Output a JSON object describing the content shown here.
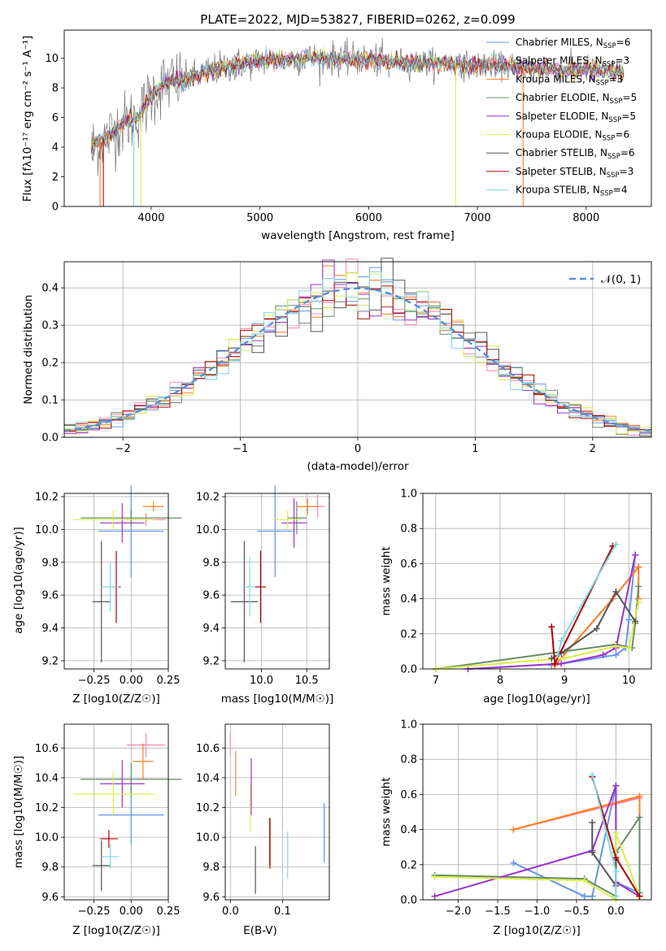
{
  "chart_data": [
    {
      "type": "line",
      "title": "PLATE=2022, MJD=53827, FIBERID=0262, z=0.099",
      "xlabel": "wavelength [Angstrom, rest frame]",
      "ylabel": "Flux [fλ10⁻¹⁷ erg cm⁻² s⁻¹ A⁻¹]",
      "xlim": [
        3200,
        8600
      ],
      "ylim": [
        0,
        11.9
      ],
      "xticks": [
        4000,
        5000,
        6000,
        7000,
        8000
      ],
      "yticks": [
        0,
        2,
        4,
        6,
        8,
        10
      ],
      "legend_position": "upper-right",
      "continuum": {
        "wavelength": [
          3450,
          3500,
          3600,
          3700,
          3800,
          3900,
          4000,
          4100,
          4200,
          4300,
          4400,
          4600,
          4800,
          5000,
          5200,
          5400,
          5600,
          5800,
          6000,
          6200,
          6400,
          6600,
          6800,
          7000,
          7200,
          7400,
          7600,
          7800,
          8000,
          8200,
          8350
        ],
        "flux": [
          3.9,
          4.3,
          4.7,
          5.4,
          5.8,
          6.2,
          7.5,
          8.2,
          8.4,
          8.5,
          8.8,
          9.3,
          9.6,
          9.8,
          9.9,
          10.0,
          10.0,
          9.9,
          9.9,
          9.8,
          9.7,
          9.7,
          9.6,
          9.5,
          9.5,
          9.4,
          9.3,
          9.2,
          9.3,
          9.1,
          9.0
        ]
      },
      "series": [
        {
          "name": "Chabrier MILES, N_SSP=6",
          "color": "#6495ed"
        },
        {
          "name": "Salpeter MILES, N_SSP=3",
          "color": "#ff82ab"
        },
        {
          "name": "Kroupa MILES, N_SSP=3",
          "color": "#ff7f24"
        },
        {
          "name": "Chabrier ELODIE, N_SSP=5",
          "color": "#698b69"
        },
        {
          "name": "Salpeter ELODIE, N_SSP=5",
          "color": "#9a32cd"
        },
        {
          "name": "Kroupa ELODIE, N_SSP=6",
          "color": "#dbee4a"
        },
        {
          "name": "Chabrier STELIB, N_SSP=6",
          "color": "#555555"
        },
        {
          "name": "Salpeter STELIB, N_SSP=3",
          "color": "#b00000"
        },
        {
          "name": "Kroupa STELIB, N_SSP=4",
          "color": "#7fd7e0"
        }
      ]
    },
    {
      "type": "histogram",
      "xlabel": "(data-model)/error",
      "ylabel": "Normed distribution",
      "xlim": [
        -2.5,
        2.5
      ],
      "ylim": [
        0,
        0.47
      ],
      "xticks": [
        -2,
        -1,
        0,
        1,
        2
      ],
      "yticks": [
        0.0,
        0.1,
        0.2,
        0.3,
        0.4
      ],
      "legend": "𝒩(0, 1)",
      "legend_position": "upper-right",
      "bin_width": 0.1
    },
    {
      "type": "error_bar",
      "xlabel": "Z [log10(Z/Z☉)]",
      "ylabel": "age  [log10(age/yr)]",
      "xlim": [
        -0.45,
        0.25
      ],
      "ylim": [
        9.15,
        10.22
      ],
      "xticks": [
        -0.25,
        0.0,
        0.25
      ],
      "yticks": [
        9.2,
        9.4,
        9.6,
        9.8,
        10.0,
        10.2
      ],
      "points": [
        {
          "x": 0.0,
          "xerr": 0.22,
          "y": 9.99,
          "yerr": 0.28
        },
        {
          "x": 0.1,
          "xerr": 0.13,
          "y": 10.06,
          "yerr": 0.04
        },
        {
          "x": 0.15,
          "xerr": 0.07,
          "y": 10.14,
          "yerr": 0.03
        },
        {
          "x": 0.0,
          "xerr": 0.34,
          "y": 10.07,
          "yerr": 0.05
        },
        {
          "x": -0.06,
          "xerr": 0.15,
          "y": 10.04,
          "yerr": 0.12
        },
        {
          "x": -0.12,
          "xerr": 0.27,
          "y": 10.06,
          "yerr": 0.06
        },
        {
          "x": -0.2,
          "xerr": 0.06,
          "y": 9.56,
          "yerr": 0.37
        },
        {
          "x": -0.1,
          "xerr": 0.03,
          "y": 9.65,
          "yerr": 0.22
        },
        {
          "x": -0.14,
          "xerr": 0.06,
          "y": 9.65,
          "yerr": 0.15
        }
      ]
    },
    {
      "type": "error_bar",
      "xlabel": "mass [log10(M/M☉)]",
      "xlim": [
        9.6,
        10.75
      ],
      "ylim": [
        9.15,
        10.22
      ],
      "xticks": [
        10.0,
        10.5
      ],
      "yticks": [
        9.2,
        9.4,
        9.6,
        9.8,
        10.0,
        10.2
      ],
      "points": [
        {
          "x": 10.15,
          "xerr": 0.2,
          "y": 9.99,
          "yerr": 0.28
        },
        {
          "x": 10.62,
          "xerr": 0.08,
          "y": 10.14,
          "yerr": 0.07
        },
        {
          "x": 10.51,
          "xerr": 0.12,
          "y": 10.14,
          "yerr": 0.05
        },
        {
          "x": 10.39,
          "xerr": 0.11,
          "y": 10.07,
          "yerr": 0.1
        },
        {
          "x": 10.36,
          "xerr": 0.14,
          "y": 10.04,
          "yerr": 0.15
        },
        {
          "x": 10.29,
          "xerr": 0.15,
          "y": 10.06,
          "yerr": 0.06
        },
        {
          "x": 9.81,
          "xerr": 0.15,
          "y": 9.56,
          "yerr": 0.37
        },
        {
          "x": 9.99,
          "xerr": 0.06,
          "y": 9.65,
          "yerr": 0.22
        },
        {
          "x": 9.87,
          "xerr": 0.06,
          "y": 9.65,
          "yerr": 0.18
        }
      ]
    },
    {
      "type": "line",
      "xlabel": "age  [log10(age/yr)]",
      "ylabel": "mass weight",
      "xlim": [
        6.8,
        10.35
      ],
      "ylim": [
        0,
        1.0
      ],
      "xticks": [
        7,
        8,
        9,
        10
      ],
      "yticks": [
        0.0,
        0.2,
        0.4,
        0.6,
        0.8,
        1.0
      ],
      "series": [
        {
          "color": "#6495ed",
          "x": [
            8.8,
            9.8,
            9.95,
            10.0,
            10.1
          ],
          "y": [
            0.02,
            0.08,
            0.12,
            0.28,
            0.65
          ]
        },
        {
          "color": "#ff82ab",
          "x": [
            8.85,
            9.75,
            10.15
          ],
          "y": [
            0.02,
            0.4,
            0.58
          ]
        },
        {
          "color": "#ff7f24",
          "x": [
            8.85,
            9.75,
            10.15,
            10.15
          ],
          "y": [
            0.02,
            0.4,
            0.58,
            0.4
          ]
        },
        {
          "color": "#698b69",
          "x": [
            7.0,
            9.8,
            10.05,
            10.1,
            10.15
          ],
          "y": [
            0.0,
            0.14,
            0.12,
            0.26,
            0.47
          ]
        },
        {
          "color": "#9a32cd",
          "x": [
            7.5,
            8.95,
            9.6,
            9.8,
            10.1
          ],
          "y": [
            0.0,
            0.03,
            0.08,
            0.12,
            0.65
          ]
        },
        {
          "color": "#dbee4a",
          "x": [
            7.0,
            8.6,
            9.0,
            9.8,
            10.0,
            10.15
          ],
          "y": [
            0.0,
            0.05,
            0.06,
            0.13,
            0.12,
            0.38
          ]
        },
        {
          "color": "#555555",
          "x": [
            8.8,
            8.95,
            9.5,
            9.8,
            10.1
          ],
          "y": [
            0.06,
            0.09,
            0.23,
            0.44,
            0.27
          ]
        },
        {
          "color": "#b00000",
          "x": [
            8.8,
            8.85,
            9.75
          ],
          "y": [
            0.24,
            0.03,
            0.7
          ]
        },
        {
          "color": "#7fd7e0",
          "x": [
            8.9,
            8.95,
            9.8
          ],
          "y": [
            0.08,
            0.16,
            0.71
          ]
        }
      ]
    },
    {
      "type": "error_bar",
      "xlabel": "Z [log10(Z/Z☉)]",
      "ylabel": "mass [log10(M/M☉)]",
      "xlim": [
        -0.45,
        0.25
      ],
      "ylim": [
        9.58,
        10.76
      ],
      "xticks": [
        -0.25,
        0.0,
        0.25
      ],
      "yticks": [
        9.6,
        9.8,
        10.0,
        10.2,
        10.4,
        10.6
      ],
      "points": [
        {
          "x": 0.0,
          "xerr": 0.22,
          "y": 10.15,
          "yerr": 0.2
        },
        {
          "x": 0.1,
          "xerr": 0.13,
          "y": 10.62,
          "yerr": 0.08
        },
        {
          "x": 0.08,
          "xerr": 0.07,
          "y": 10.51,
          "yerr": 0.12
        },
        {
          "x": 0.0,
          "xerr": 0.34,
          "y": 10.39,
          "yerr": 0.11
        },
        {
          "x": -0.06,
          "xerr": 0.15,
          "y": 10.36,
          "yerr": 0.16
        },
        {
          "x": -0.12,
          "xerr": 0.27,
          "y": 10.29,
          "yerr": 0.15
        },
        {
          "x": -0.2,
          "xerr": 0.06,
          "y": 9.81,
          "yerr": 0.17
        },
        {
          "x": -0.15,
          "xerr": 0.06,
          "y": 9.99,
          "yerr": 0.06
        },
        {
          "x": -0.14,
          "xerr": 0.06,
          "y": 9.87,
          "yerr": 0.08
        }
      ]
    },
    {
      "type": "error_bar",
      "xlabel": "E(B-V)",
      "xlim": [
        -0.01,
        0.19
      ],
      "ylim": [
        9.58,
        10.76
      ],
      "xticks": [
        0.0,
        0.1
      ],
      "yticks": [
        9.6,
        9.8,
        10.0,
        10.2,
        10.4,
        10.6
      ],
      "points": [
        {
          "x": 0.18,
          "y": 10.03,
          "yerr": 0.2
        },
        {
          "x": 0.0,
          "y": 10.63,
          "yerr": 0.08
        },
        {
          "x": 0.01,
          "y": 10.43,
          "yerr": 0.15
        },
        {
          "x": 0.075,
          "y": 9.97,
          "yerr": 0.16
        },
        {
          "x": 0.04,
          "y": 10.34,
          "yerr": 0.19
        },
        {
          "x": 0.038,
          "y": 10.2,
          "yerr": 0.16
        },
        {
          "x": 0.048,
          "y": 9.78,
          "yerr": 0.16
        },
        {
          "x": 0.076,
          "y": 9.96,
          "yerr": 0.17
        },
        {
          "x": 0.11,
          "y": 9.88,
          "yerr": 0.16
        }
      ]
    },
    {
      "type": "line",
      "xlabel": "Z [log10(Z/Z☉)]",
      "ylabel": "mass weight",
      "xlim": [
        -2.45,
        0.45
      ],
      "ylim": [
        0,
        1.0
      ],
      "xticks": [
        -2.0,
        -1.5,
        -1.0,
        -0.5,
        0.0
      ],
      "yticks": [
        0.0,
        0.2,
        0.4,
        0.6,
        0.8,
        1.0
      ],
      "series": [
        {
          "color": "#6495ed",
          "x": [
            -1.3,
            -0.4,
            -0.4,
            -0.3,
            0.0,
            0.0,
            0.3
          ],
          "y": [
            0.21,
            0.02,
            0.02,
            0.02,
            0.65,
            0.1,
            0.04
          ]
        },
        {
          "color": "#ff82ab",
          "x": [
            -1.3,
            0.3,
            0.3
          ],
          "y": [
            0.4,
            0.58,
            0.02
          ]
        },
        {
          "color": "#ff7f24",
          "x": [
            -1.3,
            0.3,
            0.3
          ],
          "y": [
            0.4,
            0.59,
            0.02
          ]
        },
        {
          "color": "#698b69",
          "x": [
            -2.3,
            -0.4,
            0.0,
            0.0,
            0.3,
            0.3
          ],
          "y": [
            0.14,
            0.12,
            0.02,
            0.27,
            0.47,
            0.04
          ]
        },
        {
          "color": "#9a32cd",
          "x": [
            -2.3,
            -0.3,
            0.0,
            0.0,
            0.3
          ],
          "y": [
            0.02,
            0.28,
            0.65,
            0.1,
            0.02
          ]
        },
        {
          "color": "#dbee4a",
          "x": [
            -2.3,
            -0.4,
            0.0,
            0.0,
            0.3
          ],
          "y": [
            0.13,
            0.11,
            0.0,
            0.38,
            0.02
          ]
        },
        {
          "color": "#555555",
          "x": [
            -0.3,
            -0.3,
            0.0,
            0.0
          ],
          "y": [
            0.44,
            0.27,
            0.08,
            0.23
          ]
        },
        {
          "color": "#b00000",
          "x": [
            -0.3,
            0.0,
            0.3
          ],
          "y": [
            0.7,
            0.24,
            0.02
          ]
        },
        {
          "color": "#7fd7e0",
          "x": [
            -0.3,
            0.0,
            0.0
          ],
          "y": [
            0.71,
            0.16,
            0.02
          ]
        }
      ]
    }
  ]
}
